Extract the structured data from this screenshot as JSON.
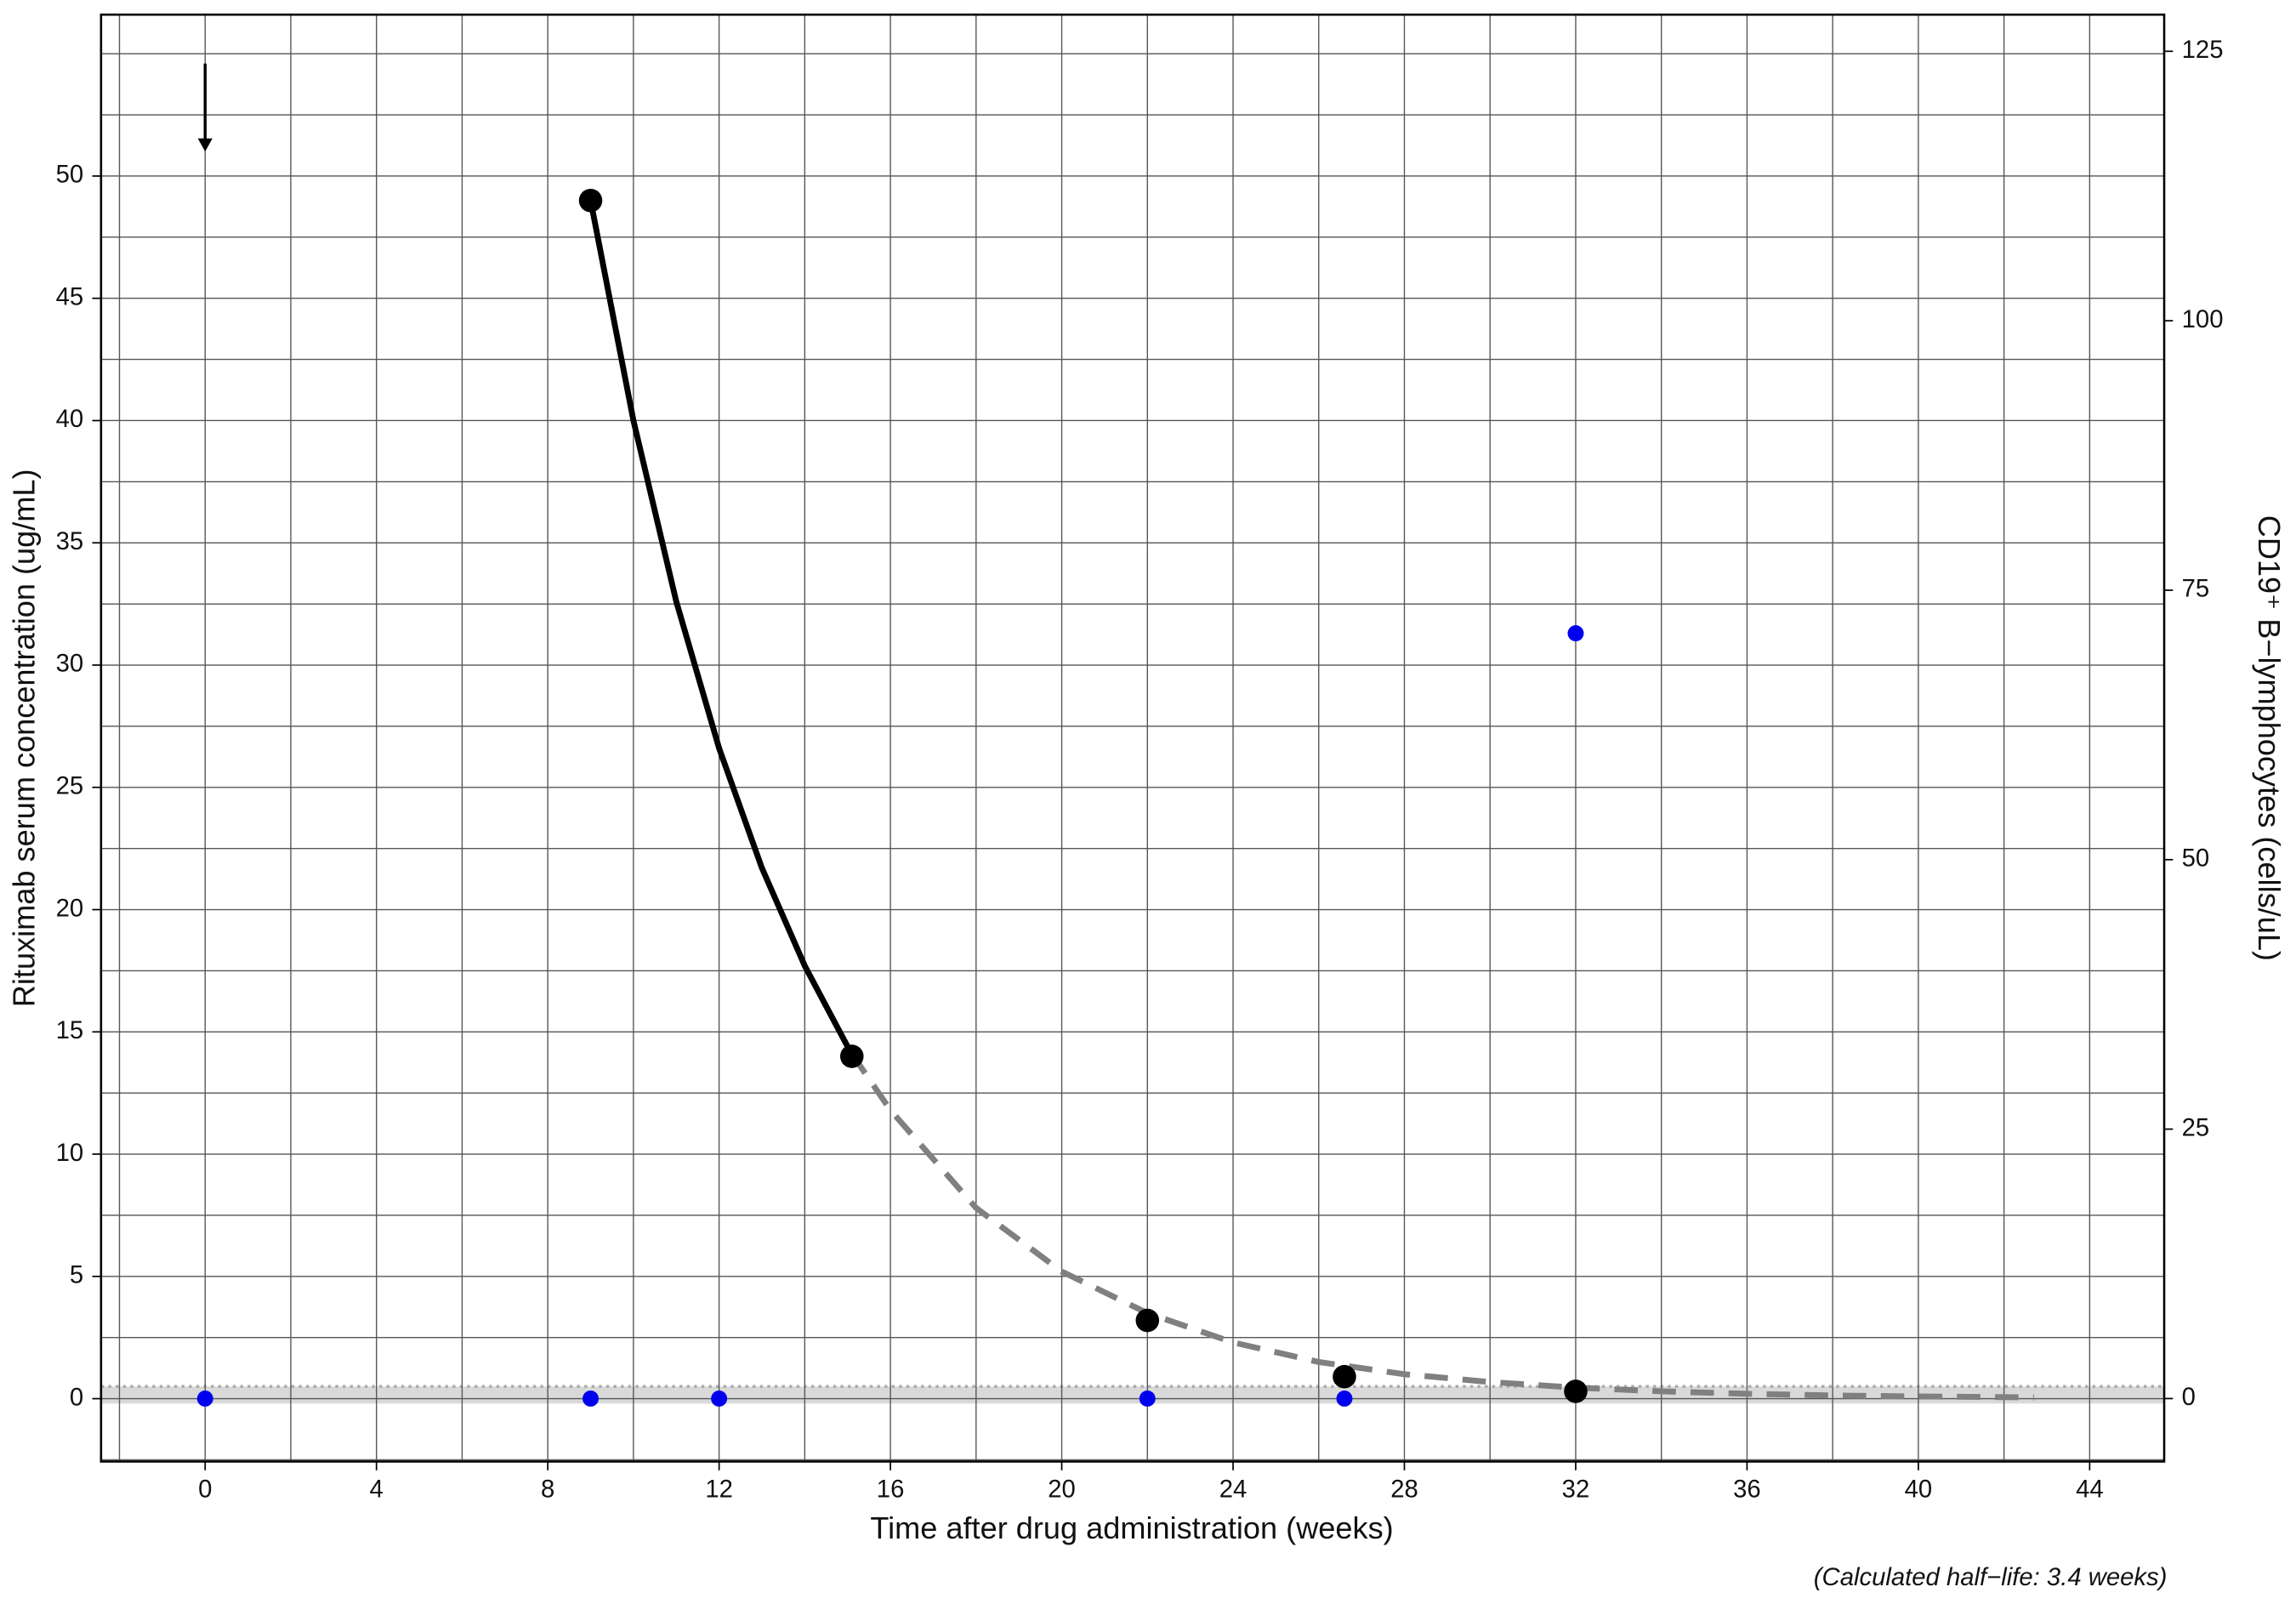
{
  "chart_data": {
    "type": "dual-axis-scatter-line",
    "xlabel": "Time after drug administration (weeks)",
    "ylabel": "Rituximab serum concentration (ug/mL)",
    "y2label": "CD19⁺ B−lymphocytes (cells/uL)",
    "annotation": "(Calculated half−life: 3.4 weeks)",
    "xlim": [
      -2.43,
      45.74
    ],
    "ylim": [
      -2.57,
      56.6
    ],
    "y2lim": [
      -5.84,
      128.4
    ],
    "xticks": [
      0,
      4,
      8,
      12,
      16,
      20,
      24,
      28,
      32,
      36,
      40,
      44
    ],
    "yticks": [
      0,
      5,
      10,
      15,
      20,
      25,
      30,
      35,
      40,
      45,
      50
    ],
    "y2ticks": [
      0,
      25,
      50,
      75,
      100,
      125
    ],
    "xgrid": [
      -2,
      0,
      2,
      4,
      6,
      8,
      10,
      12,
      14,
      16,
      18,
      20,
      22,
      24,
      26,
      28,
      30,
      32,
      34,
      36,
      38,
      40,
      42,
      44
    ],
    "ygrid": [
      -2.5,
      0,
      2.5,
      5,
      7.5,
      10,
      12.5,
      15,
      17.5,
      20,
      22.5,
      25,
      27.5,
      30,
      32.5,
      35,
      37.5,
      40,
      42.5,
      45,
      47.5,
      50,
      52.5,
      55
    ],
    "shaded_band": [
      -0.2,
      0.5
    ],
    "arrow": {
      "x": 0,
      "y_from": 54.6,
      "y_to": 51
    },
    "series": [
      {
        "style": "solid",
        "color": "#000000",
        "axis": "y",
        "x": [
          9,
          10,
          11,
          12,
          13,
          14,
          15,
          15.1
        ],
        "values": [
          49,
          40.0,
          32.6,
          26.6,
          21.7,
          17.7,
          14.4,
          14.1
        ]
      },
      {
        "style": "dashed",
        "color": "#808080",
        "axis": "y",
        "x": [
          15.1,
          16,
          18,
          20,
          22,
          24,
          26,
          28,
          30,
          32,
          34,
          36,
          38,
          40,
          42.7
        ],
        "values": [
          14.1,
          11.8,
          7.8,
          5.2,
          3.5,
          2.3,
          1.5,
          1.0,
          0.68,
          0.45,
          0.3,
          0.2,
          0.13,
          0.09,
          0.05
        ]
      },
      {
        "style": "marker",
        "color": "#000000",
        "axis": "y",
        "x": [
          9,
          15.1,
          22,
          26.6,
          32
        ],
        "values": [
          49,
          14,
          3.2,
          0.9,
          0.3
        ]
      },
      {
        "style": "marker-small",
        "color": "#0000ee",
        "axis": "y2",
        "x": [
          0,
          9,
          12,
          22,
          26.6,
          32
        ],
        "values": [
          0,
          0,
          0,
          0,
          0,
          71
        ]
      }
    ]
  }
}
